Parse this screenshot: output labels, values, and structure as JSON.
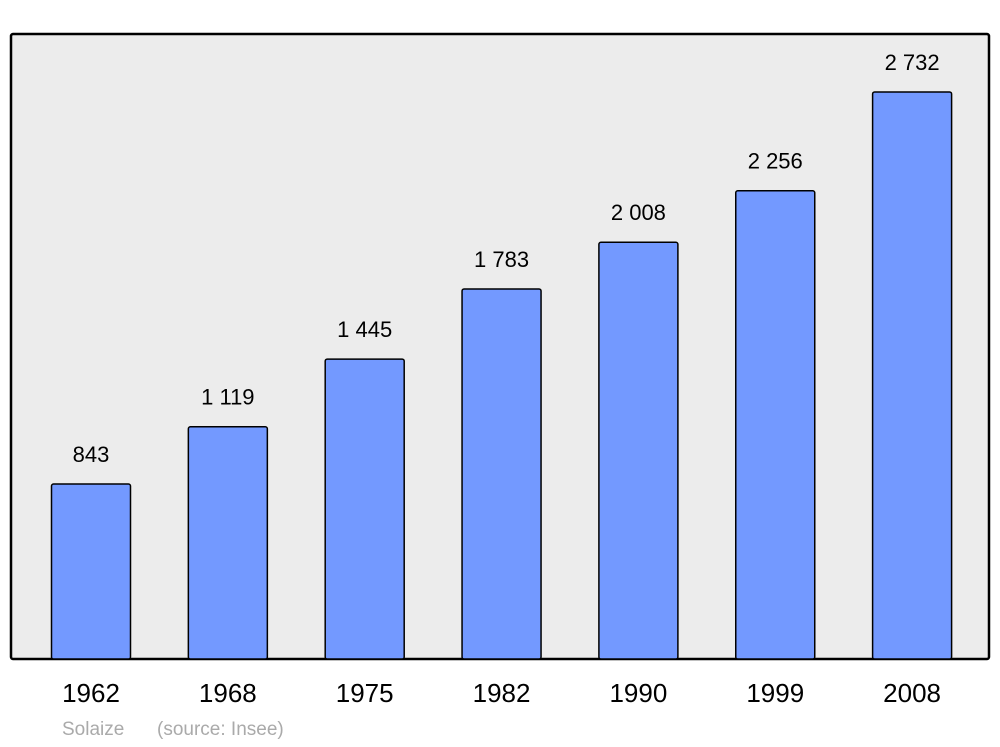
{
  "chart_data": {
    "type": "bar",
    "categories": [
      "1962",
      "1968",
      "1975",
      "1982",
      "1990",
      "1999",
      "2008"
    ],
    "values": [
      843,
      1119,
      1445,
      1783,
      2008,
      2256,
      2732
    ],
    "value_labels": [
      "843",
      "1 119",
      "1 445",
      "1 783",
      "2 008",
      "2 256",
      "2 732"
    ],
    "color": "#7399ff",
    "annotations": [
      "Solaize",
      "(source: Insee)"
    ]
  }
}
